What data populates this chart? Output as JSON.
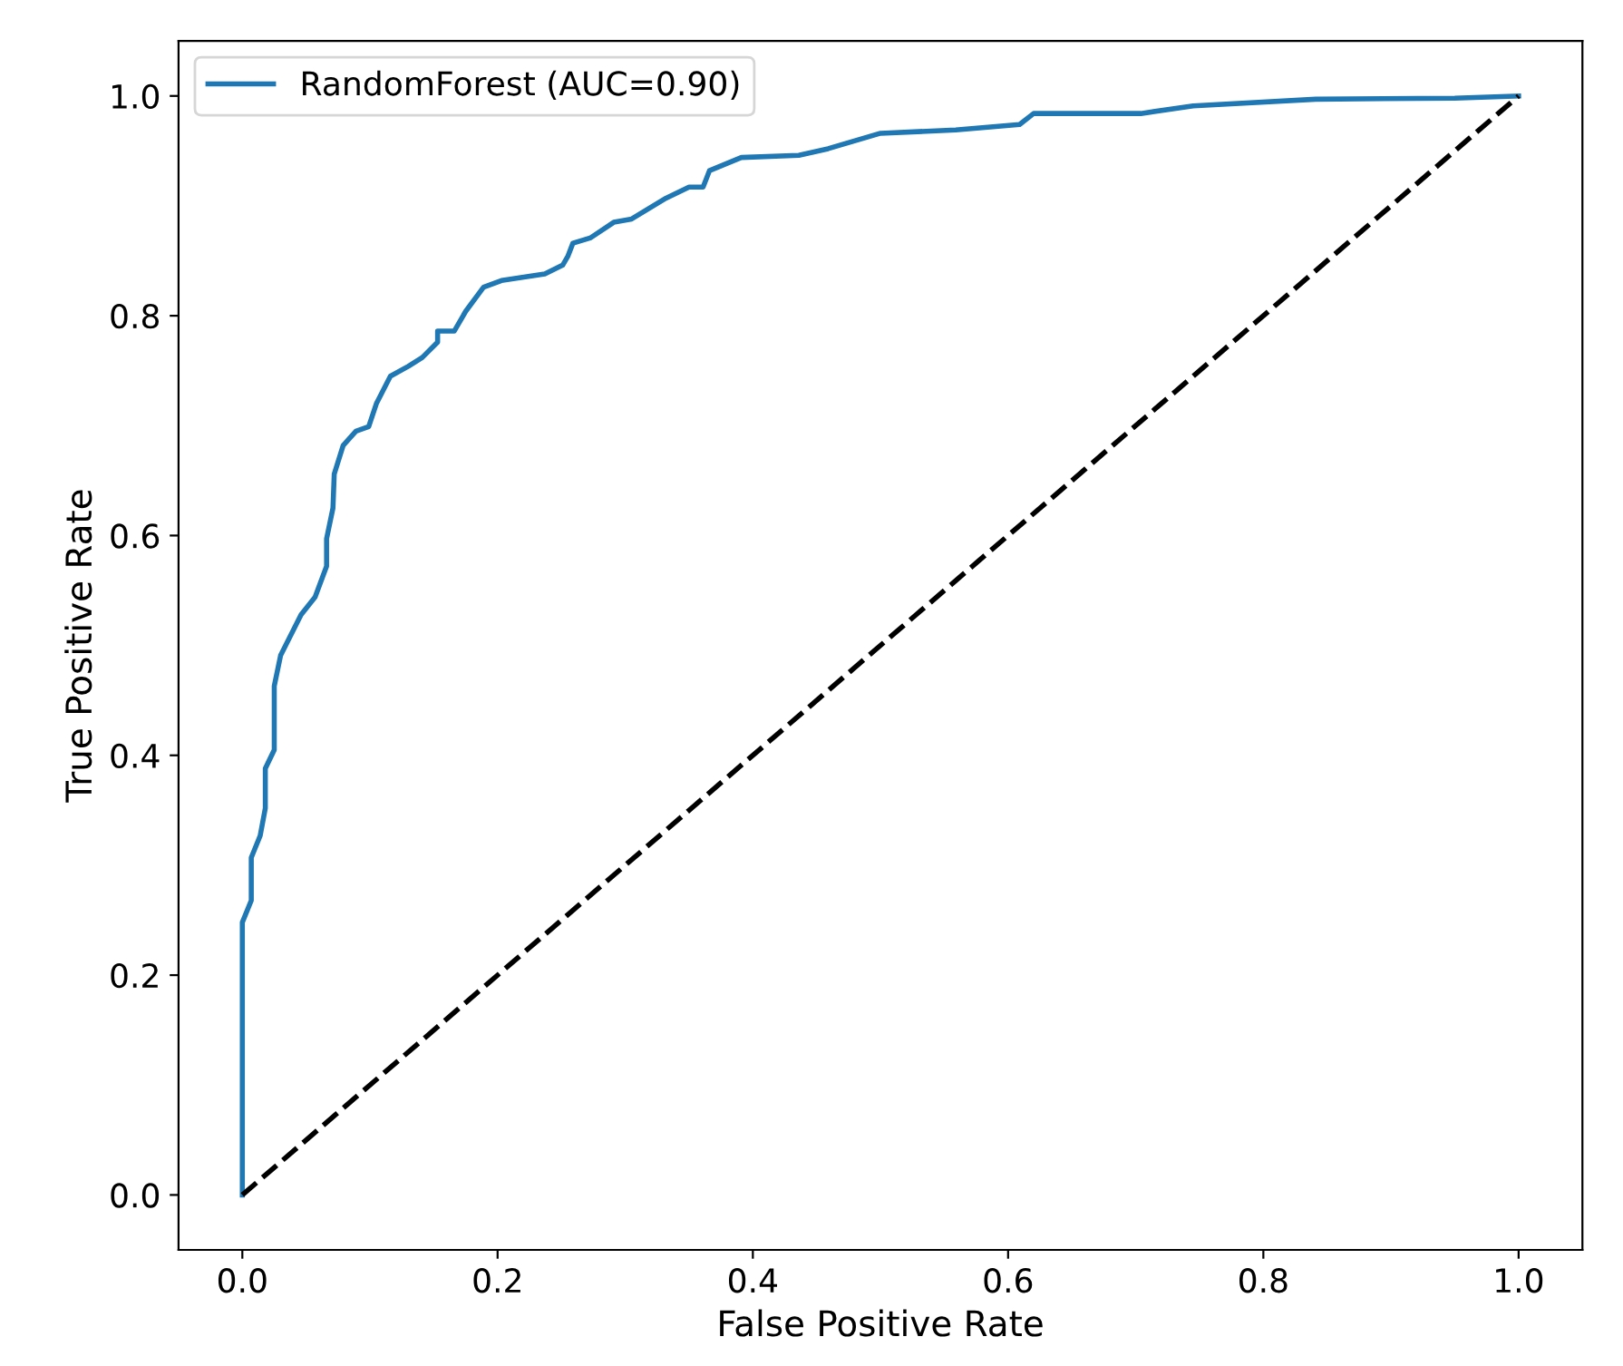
{
  "chart_data": {
    "type": "line",
    "xlabel": "False Positive Rate",
    "ylabel": "True Positive Rate",
    "xlim": [
      -0.05,
      1.05
    ],
    "ylim": [
      -0.05,
      1.05
    ],
    "xticks": [
      {
        "value": 0,
        "label": "0.0"
      },
      0.2,
      0.4,
      0.6,
      0.8,
      {
        "value": 1,
        "label": "1.0"
      }
    ],
    "yticks": [
      {
        "value": 0,
        "label": "0.0"
      },
      0.2,
      0.4,
      0.6,
      0.8,
      {
        "value": 1,
        "label": "1.0"
      }
    ],
    "grid": false,
    "legend": "top left",
    "series": [
      {
        "name": "RandomForest (AUC=0.90)",
        "color": "#1f77b4",
        "line_style": "solid",
        "x": [
          0,
          0,
          0.007,
          0.007,
          0.014,
          0.018,
          0.018,
          0.025,
          0.025,
          0.03,
          0.046,
          0.057,
          0.066,
          0.066,
          0.071,
          0.072,
          0.079,
          0.089,
          0.099,
          0.105,
          0.116,
          0.13,
          0.141,
          0.153,
          0.153,
          0.166,
          0.175,
          0.189,
          0.203,
          0.237,
          0.251,
          0.255,
          0.259,
          0.273,
          0.291,
          0.305,
          0.332,
          0.35,
          0.361,
          0.366,
          0.391,
          0.436,
          0.459,
          0.5,
          0.559,
          0.609,
          0.62,
          0.704,
          0.745,
          0.841,
          0.95,
          1
        ],
        "values": [
          0,
          0.248,
          0.268,
          0.307,
          0.327,
          0.352,
          0.388,
          0.405,
          0.463,
          0.491,
          0.528,
          0.544,
          0.572,
          0.597,
          0.625,
          0.656,
          0.682,
          0.695,
          0.699,
          0.72,
          0.745,
          0.754,
          0.762,
          0.776,
          0.786,
          0.786,
          0.804,
          0.826,
          0.832,
          0.838,
          0.846,
          0.854,
          0.866,
          0.871,
          0.885,
          0.888,
          0.907,
          0.917,
          0.917,
          0.932,
          0.944,
          0.946,
          0.952,
          0.966,
          0.969,
          0.974,
          0.984,
          0.984,
          0.991,
          0.997,
          0.998,
          1
        ]
      },
      {
        "color": "#000000",
        "line_style": "dashed",
        "x": [
          0,
          1
        ],
        "values": [
          0,
          1
        ]
      }
    ]
  }
}
